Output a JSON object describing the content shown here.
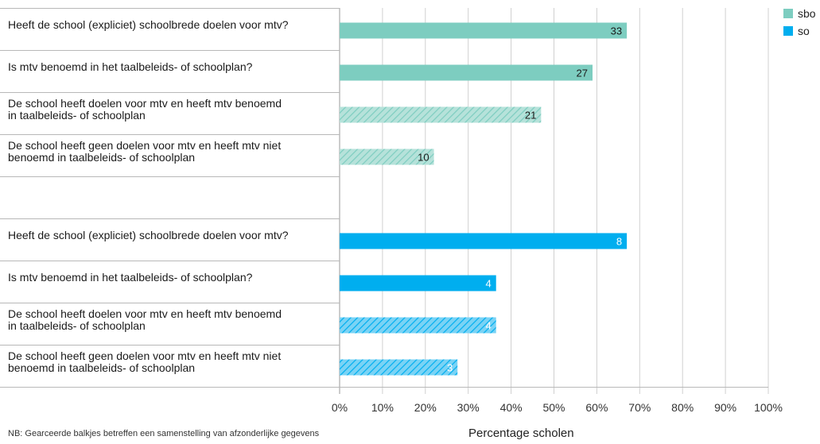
{
  "chart_data": {
    "type": "bar",
    "orientation": "horizontal",
    "xlabel": "Percentage scholen",
    "xlim": [
      0,
      100
    ],
    "xticks": [
      "0%",
      "10%",
      "20%",
      "30%",
      "40%",
      "50%",
      "60%",
      "70%",
      "80%",
      "90%",
      "100%"
    ],
    "grid": true,
    "legend_position": "top-right",
    "series": [
      {
        "name": "sbo",
        "color": "#7dcdc0",
        "hatch_color": "#b6e2da"
      },
      {
        "name": "so",
        "color": "#00aeef",
        "hatch_color": "#7ad3f5"
      }
    ],
    "bars": [
      {
        "group": "sbo",
        "category": "Heeft de school (expliciet) schoolbrede doelen voor mtv?",
        "lines": [
          "Heeft de school (expliciet) schoolbrede doelen voor mtv?"
        ],
        "value": 67,
        "label": "33",
        "hatched": false
      },
      {
        "group": "sbo",
        "category": "Is mtv benoemd in het taalbeleids- of schoolplan?",
        "lines": [
          "Is mtv benoemd in het taalbeleids- of schoolplan?"
        ],
        "value": 59,
        "label": "27",
        "hatched": false
      },
      {
        "group": "sbo",
        "category": "De school heeft doelen voor mtv en heeft mtv benoemd in taalbeleids- of schoolplan",
        "lines": [
          "De school heeft doelen voor mtv en heeft mtv benoemd",
          "in taalbeleids- of schoolplan"
        ],
        "value": 47,
        "label": "21",
        "hatched": true
      },
      {
        "group": "sbo",
        "category": "De school heeft geen doelen voor mtv en heeft mtv niet benoemd in taalbeleids- of schoolplan",
        "lines": [
          "De school heeft geen doelen voor mtv en heeft mtv niet",
          "benoemd in taalbeleids- of schoolplan"
        ],
        "value": 22,
        "label": "10",
        "hatched": true
      },
      {
        "group": "so",
        "category": "Heeft de school (expliciet) schoolbrede doelen voor mtv?",
        "lines": [
          "Heeft de school (expliciet) schoolbrede doelen voor mtv?"
        ],
        "value": 67,
        "label": "8",
        "hatched": false
      },
      {
        "group": "so",
        "category": "Is mtv benoemd in het taalbeleids- of schoolplan?",
        "lines": [
          "Is mtv benoemd in het taalbeleids- of schoolplan?"
        ],
        "value": 36.5,
        "label": "4",
        "hatched": false
      },
      {
        "group": "so",
        "category": "De school heeft doelen voor mtv en heeft mtv benoemd in taalbeleids- of schoolplan",
        "lines": [
          "De school heeft doelen voor mtv en heeft mtv benoemd",
          "in taalbeleids- of schoolplan"
        ],
        "value": 36.5,
        "label": "4",
        "hatched": true
      },
      {
        "group": "so",
        "category": "De school heeft geen doelen voor mtv en heeft mtv niet benoemd in taalbeleids- of schoolplan",
        "lines": [
          "De school heeft geen doelen voor mtv en heeft mtv niet",
          "benoemd in taalbeleids- of schoolplan"
        ],
        "value": 27.5,
        "label": "3",
        "hatched": true
      }
    ]
  },
  "footnote": "NB: Gearceerde balkjes betreffen een samenstelling van afzonderlijke gegevens"
}
